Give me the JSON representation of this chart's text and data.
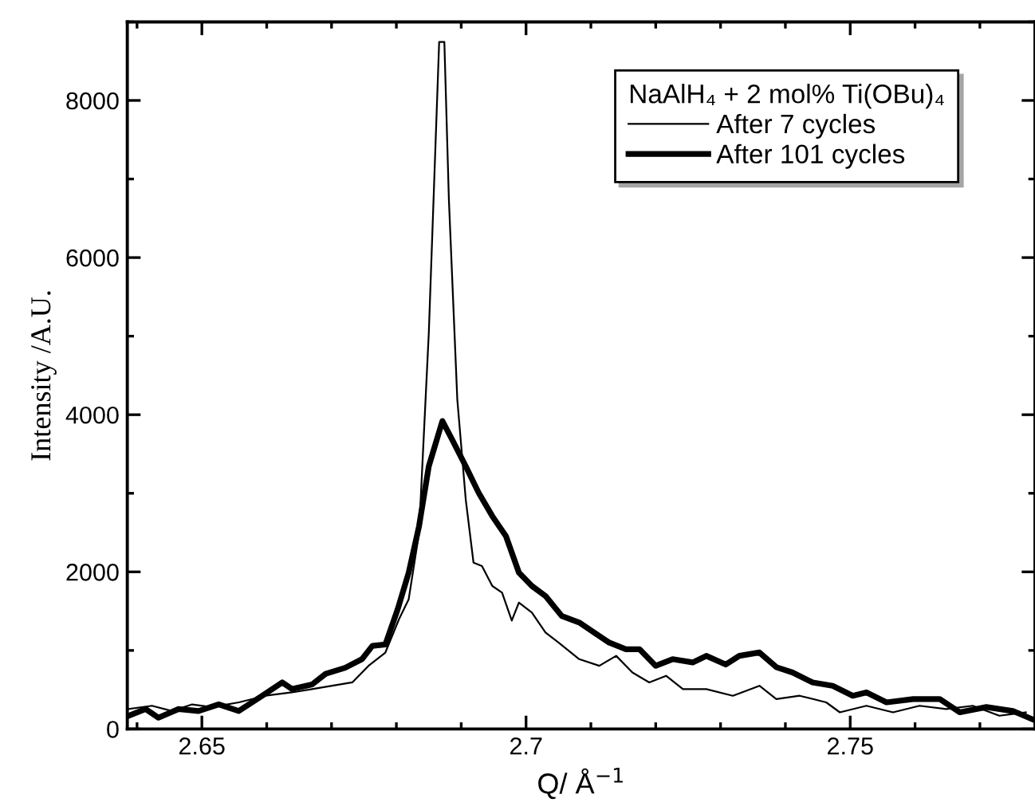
{
  "chart_data": {
    "type": "line",
    "xlabel": "Q/ Å$^{−1}$",
    "ylabel": "Intensity /A.U.",
    "legend_title": "NaAlH₄ + 2 mol% Ti(OBu)₄",
    "legend": "top right",
    "grid": false,
    "marker": "none",
    "line_style": "solid",
    "xlim": [
      2.6385,
      2.7785
    ],
    "ylim": [
      0,
      9000
    ],
    "xticks": [
      2.65,
      2.7,
      2.75
    ],
    "yticks": [
      0,
      2000,
      4000,
      6000,
      8000
    ],
    "series": [
      {
        "name": "After 7 cycles",
        "color": "#000000",
        "x": [
          2.6387,
          2.6423,
          2.6454,
          2.6485,
          2.6515,
          2.6557,
          2.6598,
          2.6639,
          2.667,
          2.6701,
          2.6732,
          2.6757,
          2.6783,
          2.6804,
          2.6819,
          2.6835,
          2.685,
          2.6866,
          2.6874,
          2.6881,
          2.6894,
          2.6907,
          2.6919,
          2.6932,
          2.6948,
          2.6963,
          2.6978,
          2.6989,
          2.7009,
          2.703,
          2.705,
          2.7082,
          2.7113,
          2.7139,
          2.7164,
          2.719,
          2.7216,
          2.7242,
          2.7278,
          2.7319,
          2.736,
          2.7386,
          2.7422,
          2.7463,
          2.7484,
          2.7525,
          2.7566,
          2.7607,
          2.7648,
          2.7689,
          2.773,
          2.7771
        ],
        "values": [
          254,
          296,
          229,
          313,
          279,
          339,
          423,
          466,
          508,
          550,
          593,
          804,
          973,
          1397,
          1651,
          2497,
          5037,
          8745,
          8745,
          6739,
          4191,
          2921,
          2117,
          2074,
          1820,
          1736,
          1380,
          1609,
          1482,
          1228,
          1101,
          889,
          804,
          931,
          720,
          593,
          677,
          508,
          508,
          423,
          550,
          381,
          423,
          339,
          212,
          296,
          212,
          296,
          254,
          296,
          169,
          212
        ]
      },
      {
        "name": "After 101 cycles",
        "color": "#000000",
        "x": [
          2.6387,
          2.6413,
          2.6433,
          2.6464,
          2.6495,
          2.6526,
          2.6557,
          2.6593,
          2.6624,
          2.6639,
          2.667,
          2.6691,
          2.6721,
          2.6747,
          2.6763,
          2.6783,
          2.6802,
          2.6819,
          2.6835,
          2.685,
          2.6871,
          2.6886,
          2.6907,
          2.6927,
          2.6948,
          2.6969,
          2.6989,
          2.7009,
          2.703,
          2.7055,
          2.7082,
          2.7102,
          2.7128,
          2.7154,
          2.7175,
          2.72,
          2.7226,
          2.7257,
          2.7278,
          2.7308,
          2.7329,
          2.736,
          2.7386,
          2.7411,
          2.7442,
          2.7473,
          2.7504,
          2.7525,
          2.7556,
          2.7597,
          2.7638,
          2.7669,
          2.771,
          2.7751,
          2.778
        ],
        "values": [
          169,
          254,
          144,
          254,
          229,
          313,
          229,
          423,
          593,
          508,
          567,
          703,
          779,
          889,
          1058,
          1075,
          1524,
          1990,
          2582,
          3344,
          3920,
          3683,
          3344,
          3005,
          2709,
          2455,
          1990,
          1820,
          1693,
          1439,
          1355,
          1245,
          1101,
          1016,
          1016,
          804,
          889,
          847,
          931,
          821,
          931,
          974,
          787,
          720,
          593,
          550,
          423,
          466,
          339,
          381,
          381,
          212,
          279,
          229,
          127
        ]
      }
    ]
  }
}
